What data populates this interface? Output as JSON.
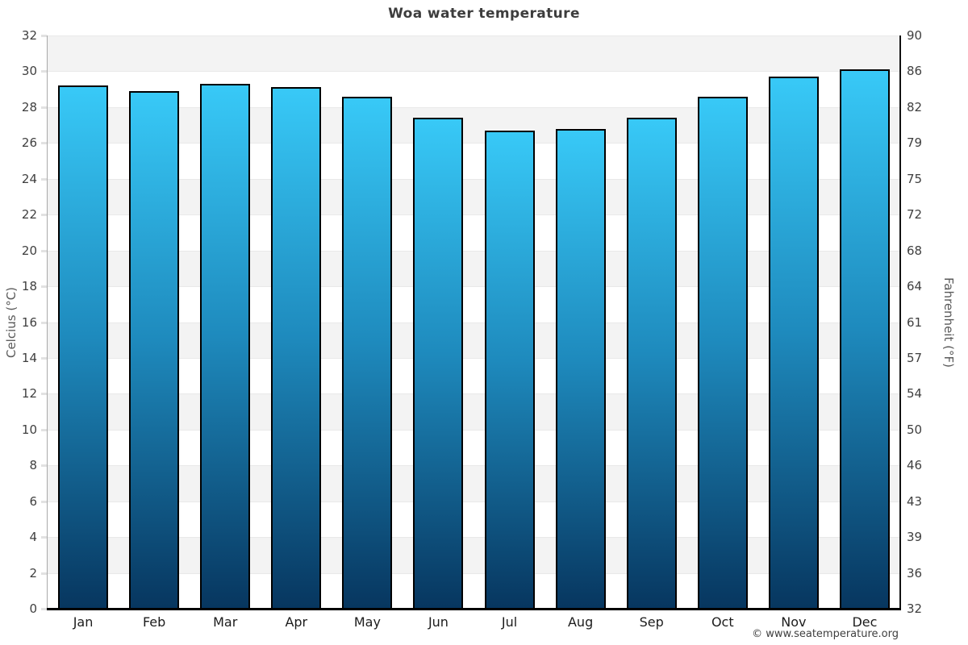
{
  "title": "Woa water temperature",
  "footer": {
    "credit": "© www.seatemperature.org"
  },
  "chart_data": {
    "type": "bar",
    "title": "Woa water temperature",
    "categories": [
      "Jan",
      "Feb",
      "Mar",
      "Apr",
      "May",
      "Jun",
      "Jul",
      "Aug",
      "Sep",
      "Oct",
      "Nov",
      "Dec"
    ],
    "values": [
      29.2,
      28.9,
      29.3,
      29.1,
      28.6,
      27.4,
      26.7,
      26.8,
      27.4,
      28.6,
      29.7,
      30.1
    ],
    "ylabel_left": "Celcius (°C)",
    "ylabel_right": "Fahrenheit (°F)",
    "ylim": [
      0,
      32
    ],
    "ytick_step": 2,
    "yticks_celsius": [
      0,
      2,
      4,
      6,
      8,
      10,
      12,
      14,
      16,
      18,
      20,
      22,
      24,
      26,
      28,
      30,
      32
    ],
    "yticks_fahrenheit": [
      "32",
      "36",
      "39",
      "43",
      "46",
      "50",
      "54",
      "57",
      "61",
      "64",
      "68",
      "72",
      "75",
      "79",
      "82",
      "86",
      "90"
    ],
    "legend": null,
    "grid": "banded",
    "band_color": "#f3f3f3",
    "bar_color_top": "#38c9f7",
    "bar_color_bottom": "#07365f",
    "bar_border_color": "#000000"
  }
}
